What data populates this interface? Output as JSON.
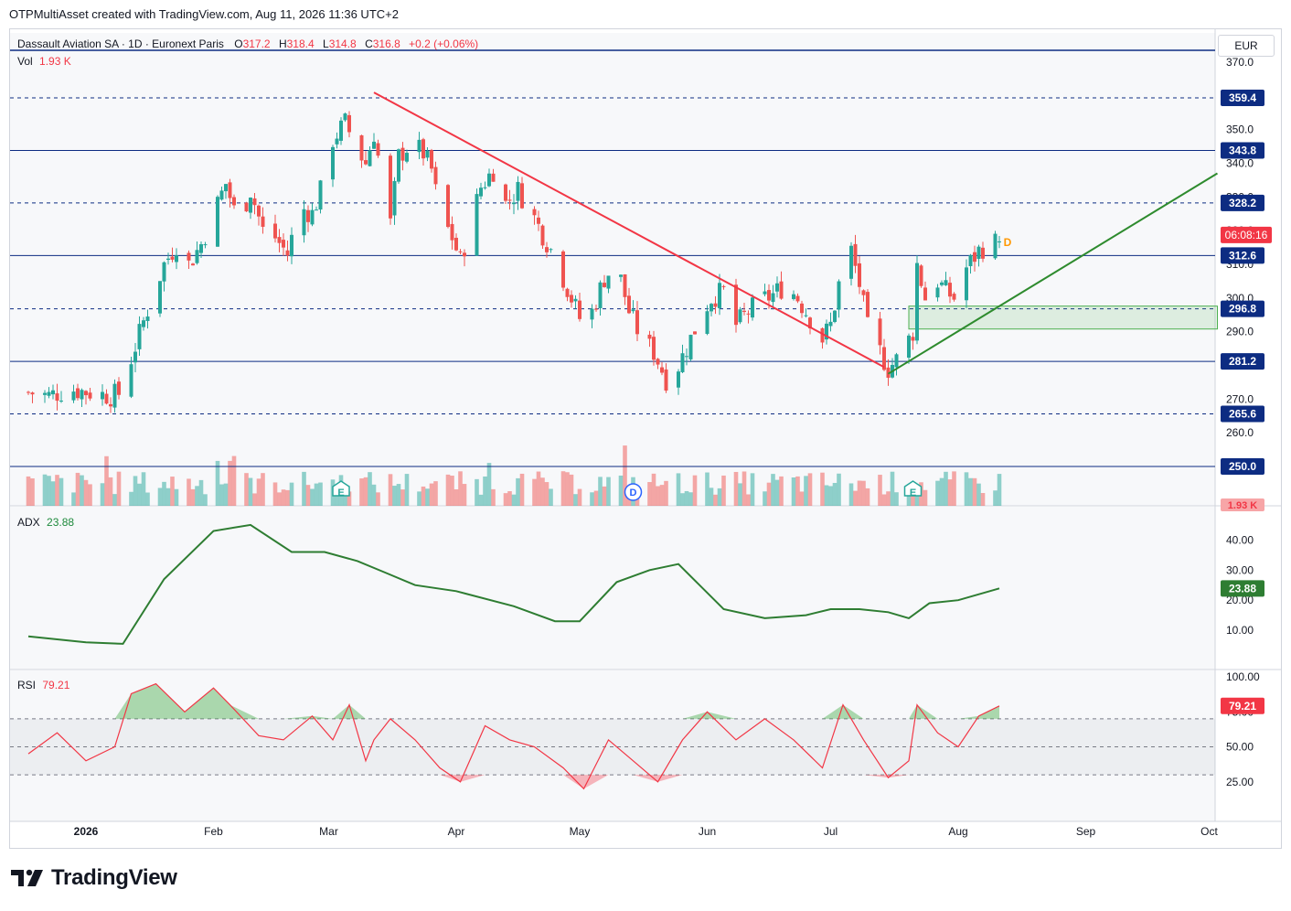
{
  "header": {
    "text": "OTPMultiAsset created with TradingView.com, Aug 11, 2026 11:36 UTC+2"
  },
  "logo": {
    "text": "TradingView",
    "icon": "tradingview-logo-icon"
  },
  "currency": "EUR",
  "legend": {
    "symbol": "Dassault Aviation SA · 1D · Euronext Paris",
    "open_label": "O",
    "open": "317.2",
    "high_label": "H",
    "high": "318.4",
    "low_label": "L",
    "low": "314.8",
    "close_label": "C",
    "close": "316.8",
    "change": "+0.2 (+0.06%)",
    "vol_label": "Vol",
    "vol": "1.93 K"
  },
  "adx_legend": {
    "label": "ADX",
    "value": "23.88"
  },
  "rsi_legend": {
    "label": "RSI",
    "value": "79.21"
  },
  "colors": {
    "up": "#26a69a",
    "down": "#ef5350",
    "hline": "#0d2c82",
    "trend_down": "#f23645",
    "trend_up": "#2e8b2e",
    "adx": "#2e7d32",
    "rsi": "#f23645"
  },
  "chart_data": [
    {
      "type": "candlestick",
      "title": "Dassault Aviation SA · 1D · Euronext Paris",
      "ylim": [
        245,
        374
      ],
      "y_ticks": [
        "370.0",
        "350.0",
        "340.0",
        "330.0",
        "320.0",
        "310.0",
        "300.0",
        "290.0",
        "270.0",
        "260.0"
      ],
      "x_ticks": [
        "2026",
        "Feb",
        "Mar",
        "Apr",
        "May",
        "Jun",
        "Jul",
        "Aug",
        "Sep",
        "Oct"
      ],
      "x_tick_dates": [
        "2026-01-01",
        "2026-02-01",
        "2026-03-01",
        "2026-04-01",
        "2026-05-01",
        "2026-06-01",
        "2026-07-01",
        "2026-08-01",
        "2026-09-01",
        "2026-10-01"
      ],
      "horizontal_levels": [
        {
          "label": "359.4",
          "value": 359.4,
          "style": "dashed"
        },
        {
          "label": "343.8",
          "value": 343.8,
          "style": "solid"
        },
        {
          "label": "328.2",
          "value": 328.2,
          "style": "dashed"
        },
        {
          "label": "312.6",
          "value": 312.6,
          "style": "solid"
        },
        {
          "label": "296.8",
          "value": 296.8,
          "style": "dashed"
        },
        {
          "label": "281.2",
          "value": 281.2,
          "style": "solid"
        },
        {
          "label": "265.6",
          "value": 265.6,
          "style": "dashed"
        },
        {
          "label": "250.0",
          "value": 250.0,
          "style": "solid"
        }
      ],
      "top_line": 373.5,
      "last_price_label": "06:08:16",
      "last_price": 316.8,
      "volume_label": "1.93 K",
      "trendlines": [
        {
          "name": "down",
          "from": [
            "2026-03-12",
            361.0
          ],
          "to": [
            "2026-07-14",
            279.5
          ]
        },
        {
          "name": "up",
          "from": [
            "2026-07-15",
            277.5
          ],
          "to": [
            "2026-10-03",
            337.0
          ]
        }
      ],
      "zone": {
        "from": "2026-07-20",
        "to": "2026-10-03",
        "low": 290.8,
        "high": 297.6
      },
      "event_markers": [
        {
          "label": "E",
          "date": "2026-03-04"
        },
        {
          "label": "D",
          "date": "2026-05-14"
        },
        {
          "label": "E",
          "date": "2026-07-21"
        },
        {
          "label": "D",
          "date": "2026-08-13",
          "floating": true,
          "price": 316.5
        }
      ],
      "series": {
        "path": [
          [
            "2025-12-18",
            272
          ],
          [
            "2025-12-23",
            271
          ],
          [
            "2025-12-28",
            273
          ],
          [
            "2026-01-02",
            272
          ],
          [
            "2026-01-07",
            271
          ],
          [
            "2026-01-10",
            272
          ],
          [
            "2026-01-12",
            282
          ],
          [
            "2026-01-15",
            293
          ],
          [
            "2026-01-17",
            300
          ],
          [
            "2026-01-20",
            310
          ],
          [
            "2026-01-23",
            316
          ],
          [
            "2026-01-26",
            310
          ],
          [
            "2026-01-29",
            316
          ],
          [
            "2026-02-01",
            325
          ],
          [
            "2026-02-04",
            334
          ],
          [
            "2026-02-07",
            322
          ],
          [
            "2026-02-10",
            332
          ],
          [
            "2026-02-13",
            320
          ],
          [
            "2026-02-16",
            318
          ],
          [
            "2026-02-19",
            313
          ],
          [
            "2026-02-22",
            327
          ],
          [
            "2026-02-25",
            325
          ],
          [
            "2026-02-28",
            335
          ],
          [
            "2026-03-02",
            347
          ],
          [
            "2026-03-05",
            352
          ],
          [
            "2026-03-08",
            344
          ],
          [
            "2026-03-10",
            340
          ],
          [
            "2026-03-12",
            349
          ],
          [
            "2026-03-14",
            335
          ],
          [
            "2026-03-16",
            322
          ],
          [
            "2026-03-18",
            342
          ],
          [
            "2026-03-21",
            346
          ],
          [
            "2026-03-24",
            343
          ],
          [
            "2026-03-26",
            338
          ],
          [
            "2026-03-28",
            325
          ],
          [
            "2026-03-31",
            318
          ],
          [
            "2026-04-02",
            311
          ],
          [
            "2026-04-04",
            320
          ],
          [
            "2026-04-07",
            333
          ],
          [
            "2026-04-10",
            338
          ],
          [
            "2026-04-13",
            328
          ],
          [
            "2026-04-16",
            332
          ],
          [
            "2026-04-19",
            326
          ],
          [
            "2026-04-22",
            319
          ],
          [
            "2026-04-25",
            312
          ],
          [
            "2026-04-28",
            303
          ],
          [
            "2026-05-01",
            294
          ],
          [
            "2026-05-04",
            296
          ],
          [
            "2026-05-07",
            306
          ],
          [
            "2026-05-10",
            310
          ],
          [
            "2026-05-13",
            296
          ],
          [
            "2026-05-16",
            288
          ],
          [
            "2026-05-19",
            284
          ],
          [
            "2026-05-22",
            276
          ],
          [
            "2026-05-25",
            280
          ],
          [
            "2026-05-28",
            288
          ],
          [
            "2026-05-31",
            296
          ],
          [
            "2026-06-02",
            300
          ],
          [
            "2026-06-05",
            302
          ],
          [
            "2026-06-08",
            292
          ],
          [
            "2026-06-11",
            296
          ],
          [
            "2026-06-14",
            299
          ],
          [
            "2026-06-17",
            301
          ],
          [
            "2026-06-20",
            304
          ],
          [
            "2026-06-23",
            300
          ],
          [
            "2026-06-26",
            294
          ],
          [
            "2026-06-29",
            288
          ],
          [
            "2026-07-01",
            292
          ],
          [
            "2026-07-04",
            310
          ],
          [
            "2026-07-06",
            314
          ],
          [
            "2026-07-08",
            304
          ],
          [
            "2026-07-10",
            291
          ],
          [
            "2026-07-13",
            284
          ],
          [
            "2026-07-15",
            279
          ],
          [
            "2026-07-18",
            283
          ],
          [
            "2026-07-21",
            290
          ],
          [
            "2026-07-22",
            310
          ],
          [
            "2026-07-24",
            300
          ],
          [
            "2026-07-27",
            305
          ],
          [
            "2026-07-29",
            302
          ],
          [
            "2026-07-31",
            300
          ],
          [
            "2026-08-03",
            309
          ],
          [
            "2026-08-06",
            314
          ],
          [
            "2026-08-08",
            316
          ],
          [
            "2026-08-11",
            316.8
          ]
        ]
      }
    },
    {
      "type": "bar",
      "title": "Vol",
      "note": "volume histogram, dominant values estimated in thousands",
      "values_k": []
    },
    {
      "type": "line",
      "title": "ADX",
      "ylim": [
        0,
        48
      ],
      "y_ticks": [
        "40.00",
        "30.00",
        "20.00",
        "10.00"
      ],
      "last": 23.88,
      "x": [
        "2025-12-18",
        "2026-01-01",
        "2026-01-10",
        "2026-01-20",
        "2026-02-01",
        "2026-02-10",
        "2026-02-20",
        "2026-02-28",
        "2026-03-08",
        "2026-03-15",
        "2026-03-22",
        "2026-04-01",
        "2026-04-15",
        "2026-04-25",
        "2026-05-01",
        "2026-05-10",
        "2026-05-18",
        "2026-05-25",
        "2026-06-05",
        "2026-06-15",
        "2026-06-25",
        "2026-07-01",
        "2026-07-08",
        "2026-07-15",
        "2026-07-20",
        "2026-07-25",
        "2026-08-01",
        "2026-08-11"
      ],
      "y": [
        8,
        6,
        5.5,
        27,
        43,
        45,
        36,
        36,
        33,
        29,
        25,
        23,
        18,
        13,
        13,
        26,
        30,
        32,
        17,
        14,
        15,
        17,
        17,
        16,
        14,
        19,
        20,
        23.9
      ]
    },
    {
      "type": "line",
      "title": "RSI",
      "ylim": [
        0,
        100
      ],
      "y_ticks": [
        "100.00",
        "75.00",
        "50.00",
        "25.00"
      ],
      "bands": [
        70,
        50,
        30
      ],
      "last": 79.21,
      "x": [
        "2025-12-18",
        "2025-12-25",
        "2026-01-01",
        "2026-01-08",
        "2026-01-12",
        "2026-01-18",
        "2026-01-25",
        "2026-02-01",
        "2026-02-05",
        "2026-02-12",
        "2026-02-18",
        "2026-02-25",
        "2026-03-02",
        "2026-03-06",
        "2026-03-10",
        "2026-03-12",
        "2026-03-16",
        "2026-03-22",
        "2026-03-28",
        "2026-04-02",
        "2026-04-08",
        "2026-04-14",
        "2026-04-20",
        "2026-04-27",
        "2026-05-02",
        "2026-05-08",
        "2026-05-14",
        "2026-05-20",
        "2026-05-26",
        "2026-06-01",
        "2026-06-08",
        "2026-06-15",
        "2026-06-22",
        "2026-06-29",
        "2026-07-04",
        "2026-07-09",
        "2026-07-15",
        "2026-07-20",
        "2026-07-22",
        "2026-07-27",
        "2026-08-01",
        "2026-08-06",
        "2026-08-11"
      ],
      "y": [
        45,
        60,
        40,
        50,
        88,
        95,
        75,
        92,
        80,
        58,
        55,
        72,
        55,
        80,
        40,
        55,
        70,
        55,
        35,
        25,
        65,
        55,
        50,
        35,
        20,
        55,
        40,
        25,
        55,
        75,
        55,
        70,
        55,
        35,
        80,
        55,
        28,
        40,
        80,
        60,
        50,
        72,
        79.2
      ]
    }
  ]
}
